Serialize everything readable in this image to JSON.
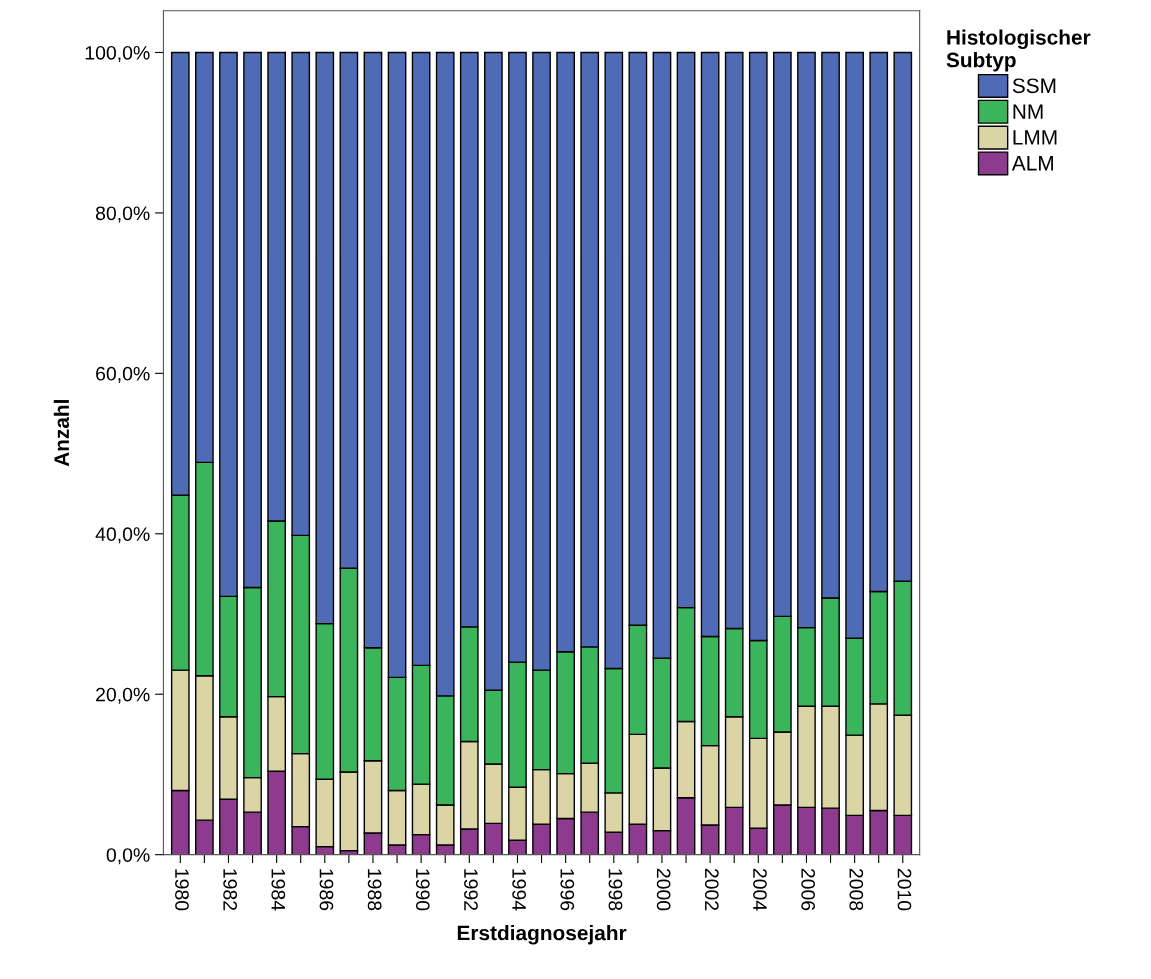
{
  "chart_data": {
    "type": "bar",
    "stacked": true,
    "xlabel": "Erstdiagnosejahr",
    "ylabel": "Anzahl",
    "legend_title": "Histologischer\nSubtyp",
    "legend": "right",
    "categories": [
      "1980",
      null,
      "1982",
      null,
      "1984",
      null,
      "1986",
      null,
      "1988",
      null,
      "1990",
      null,
      "1992",
      null,
      "1994",
      null,
      "1996",
      null,
      "1998",
      null,
      "2000",
      null,
      "2002",
      null,
      "2004",
      null,
      "2006",
      null,
      "2008",
      null,
      "2010"
    ],
    "series": [
      {
        "name": "ALM",
        "color": "#8e3a8e",
        "values": [
          8.0,
          4.3,
          6.9,
          5.3,
          10.4,
          3.5,
          1.0,
          0.5,
          2.7,
          1.2,
          2.5,
          1.2,
          3.2,
          3.9,
          1.8,
          3.8,
          4.5,
          5.3,
          2.8,
          3.8,
          3.0,
          7.1,
          3.7,
          5.9,
          3.3,
          6.2,
          5.9,
          5.8,
          4.9,
          5.5,
          4.9
        ]
      },
      {
        "name": "LMM",
        "color": "#dbd5a6",
        "values": [
          15.0,
          18.0,
          10.3,
          4.3,
          9.3,
          9.1,
          8.4,
          9.8,
          9.0,
          6.8,
          6.3,
          5.0,
          10.9,
          7.4,
          6.6,
          6.8,
          5.6,
          6.1,
          4.9,
          11.2,
          7.8,
          9.5,
          9.9,
          11.3,
          11.2,
          9.1,
          12.6,
          12.7,
          10.0,
          13.3,
          12.5
        ]
      },
      {
        "name": "NM",
        "color": "#3bb55c",
        "values": [
          21.8,
          26.6,
          15.0,
          23.7,
          21.9,
          27.2,
          19.4,
          25.4,
          14.1,
          14.1,
          14.8,
          13.6,
          14.3,
          9.2,
          15.6,
          12.4,
          15.2,
          14.5,
          15.5,
          13.6,
          13.7,
          14.2,
          13.6,
          11.0,
          12.2,
          14.4,
          9.8,
          13.5,
          12.1,
          14.0,
          16.7
        ]
      },
      {
        "name": "SSM",
        "color": "#4f6bb5",
        "values": [
          55.2,
          51.1,
          67.8,
          66.7,
          58.4,
          60.2,
          71.2,
          64.3,
          74.2,
          77.9,
          76.4,
          80.2,
          71.6,
          79.5,
          76.0,
          77.0,
          74.7,
          74.1,
          76.8,
          71.4,
          75.5,
          69.2,
          72.8,
          71.8,
          73.3,
          70.3,
          71.7,
          68.0,
          73.0,
          67.2,
          65.9
        ]
      }
    ],
    "ylim": [
      0,
      105.2
    ],
    "yticks": [
      {
        "value": 0,
        "label": "0,0%"
      },
      {
        "value": 20,
        "label": "20,0%"
      },
      {
        "value": 40,
        "label": "40,0%"
      },
      {
        "value": 60,
        "label": "60,0%"
      },
      {
        "value": 80,
        "label": "80,0%"
      },
      {
        "value": 100,
        "label": "100,0%"
      }
    ],
    "grid": false
  }
}
